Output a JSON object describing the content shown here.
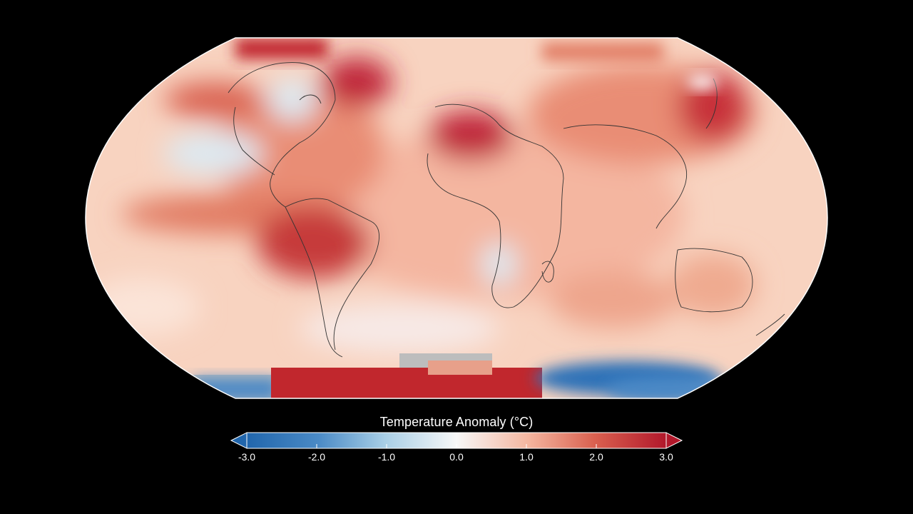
{
  "legend": {
    "title": "Temperature Anomaly (°C)",
    "ticks": [
      "-3.0",
      "-2.0",
      "-1.0",
      "0.0",
      "1.0",
      "2.0",
      "3.0"
    ],
    "tick_values": [
      -3.0,
      -2.0,
      -1.0,
      0.0,
      1.0,
      2.0,
      3.0
    ],
    "range": [
      -3.0,
      3.0
    ],
    "extend": "both",
    "colors": {
      "strong_negative": "#2166ac",
      "moderate_negative": "#6ba6d2",
      "weak_negative": "#d1e5f0",
      "neutral": "#f7f7f7",
      "weak_positive": "#fbd1bc",
      "moderate_positive": "#e78567",
      "strong_positive": "#b2182b",
      "no_data": "#bdbdbd"
    }
  },
  "map": {
    "projection": "Equal Earth",
    "background": "#000000",
    "coastline_color": "#333333"
  }
}
